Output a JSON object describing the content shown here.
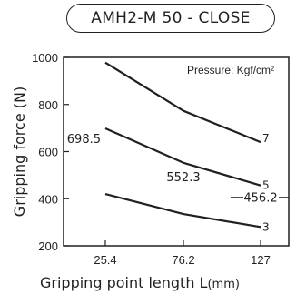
{
  "chart_data": {
    "type": "line",
    "title": "AMH2-M 50 - CLOSE",
    "xlabel": "Gripping point length L",
    "xlabel_unit": "(mm)",
    "ylabel": "Gripping force (N)",
    "annotation": "Pressure: Kgf/cm²",
    "categories": [
      "25.4",
      "76.2",
      "127"
    ],
    "ylim": [
      200,
      1000
    ],
    "yticks": [
      "200",
      "400",
      "600",
      "800",
      "1000"
    ],
    "grid": false,
    "series": [
      {
        "name": "7",
        "values": [
          978,
          773,
          640
        ]
      },
      {
        "name": "5",
        "values": [
          698.5,
          552.3,
          456.2
        ]
      },
      {
        "name": "3",
        "values": [
          420,
          335,
          280
        ]
      }
    ],
    "data_labels": [
      {
        "series": 1,
        "point": 0,
        "text": "698.5"
      },
      {
        "series": 1,
        "point": 1,
        "text": "552.3"
      },
      {
        "series": 1,
        "point": 2,
        "text": "456.2"
      }
    ]
  }
}
